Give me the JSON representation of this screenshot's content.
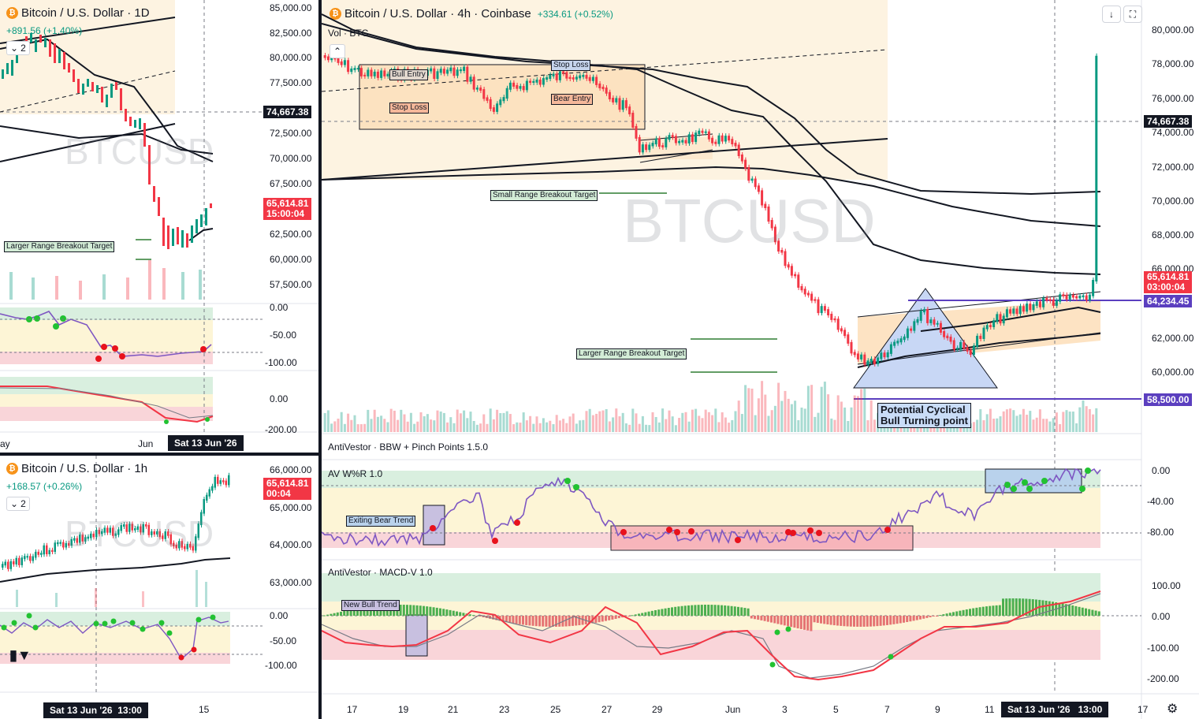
{
  "symbol_wm": "BTCUSD",
  "colors": {
    "up": "#089981",
    "down": "#f23645",
    "purple": "#7e57c2",
    "panel_sep": "#131722",
    "last_price": "#f23645",
    "level_tag": "#5b3fbf",
    "crosshair_tag": "#131722"
  },
  "icon_names": [
    "bitcoin-coin-icon",
    "eye-hidden-icon",
    "collapse-icon",
    "chevron-down-icon",
    "maximize-icon",
    "settings-gear-icon",
    "tradingview-logo-icon"
  ],
  "top_left": {
    "title": "Bitcoin / U.S. Dollar · 1D",
    "change": "+891.56 (+1.40%)",
    "chip": "2",
    "yaxis": [
      "85,000.00",
      "82,500.00",
      "80,000.00",
      "77,500.00",
      "72,500.00",
      "70,000.00",
      "67,500.00",
      "62,500.00",
      "60,000.00",
      "57,500.00"
    ],
    "crosshair_price": "74,667.38",
    "last_price": "65,614.81",
    "countdown": "15:00:04",
    "wr_axis": [
      "0.00",
      "-50.00",
      "-100.00"
    ],
    "macd_axis": [
      "0.00",
      "-200.00"
    ],
    "x_labels": [
      "ay",
      "Jun"
    ],
    "crosshair_date": "Sat 13 Jun '26",
    "annotation_target": "Larger Range Breakout Target"
  },
  "bottom_left": {
    "title": "Bitcoin / U.S. Dollar · 1h",
    "change": "+168.57 (+0.26%)",
    "chip": "2",
    "yaxis": [
      "66,000.00",
      "65,000.00",
      "64,000.00",
      "63,000.00"
    ],
    "last_price": "65,614.81",
    "countdown": "00:04",
    "wr_axis": [
      "0.00",
      "-50.00",
      "-100.00"
    ],
    "crosshair_date": "Sat 13 Jun '26",
    "crosshair_time": "13:00",
    "x_label_2": "15"
  },
  "main": {
    "title": "Bitcoin / U.S. Dollar · 4h · Coinbase",
    "change": "+334.61 (+0.52%)",
    "vol_label": "Vol · BTC",
    "yaxis": [
      "80,000.00",
      "78,000.00",
      "76,000.00",
      "72,000.00",
      "70,000.00",
      "68,000.00",
      "62,000.00",
      "60,000.00"
    ],
    "crosshair_price": "74,667.38",
    "last_price": "65,614.81",
    "countdown": "03:00:04",
    "level_1": "64,234.45",
    "level_2": "58,500.00",
    "y_partial_66": "66,000.00",
    "y_partial_74": "74,000.00",
    "annotations": {
      "bull_entry": "Bull Entry",
      "stop_loss_top": "Stop Loss",
      "stop_loss_bottom": "Stop Loss",
      "bear_entry": "Bear Entry",
      "small_target": "Small Range Breakout Target",
      "larger_target": "Larger Range Breakout Target",
      "cyclical": "Potential Cyclical\nBull Turning point",
      "exiting_bear": "Exiting Bear Trend",
      "new_bull": "New Bull Trend"
    },
    "bbw_label": "AntiVestor · BBW + Pinch Points 1.5.0",
    "wr_label": "AV W%R 1.0",
    "wr_axis": [
      "0.00",
      "-40.00",
      "-80.00"
    ],
    "macd_label": "AntiVestor · MACD-V 1.0",
    "macd_axis": [
      "100.00",
      "0.00",
      "-100.00",
      "-200.00"
    ],
    "x_labels": [
      "17",
      "19",
      "21",
      "23",
      "25",
      "27",
      "29",
      "Jun",
      "3",
      "5",
      "7",
      "9",
      "11",
      "17"
    ],
    "crosshair_date": "Sat 13 Jun '26",
    "crosshair_time": "13:00"
  }
}
